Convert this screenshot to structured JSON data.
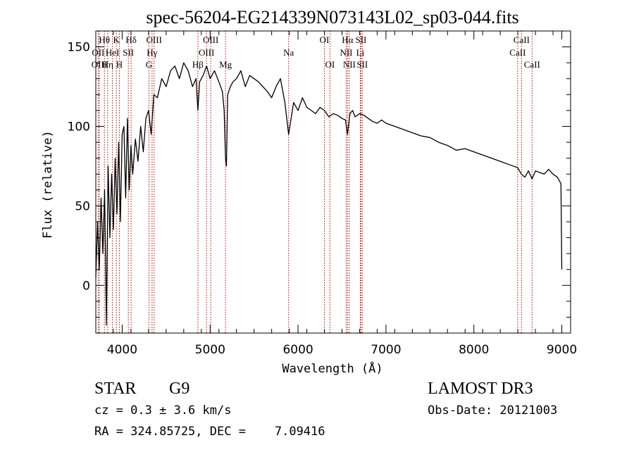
{
  "chart_data": {
    "type": "line",
    "title": "spec-56204-EG214339N073143L02_sp03-044.fits",
    "xlabel": "Wavelength (Å)",
    "ylabel": "Flux (relative)",
    "xlim": [
      3700,
      9100
    ],
    "ylim": [
      -30,
      160
    ],
    "xticks": [
      4000,
      5000,
      6000,
      7000,
      8000,
      9000
    ],
    "yticks": [
      0,
      50,
      100,
      150
    ],
    "series": [
      {
        "name": "spectrum",
        "x": [
          3700,
          3720,
          3740,
          3760,
          3780,
          3800,
          3820,
          3840,
          3860,
          3880,
          3900,
          3920,
          3940,
          3960,
          3980,
          4000,
          4020,
          4040,
          4060,
          4080,
          4100,
          4120,
          4150,
          4180,
          4210,
          4240,
          4270,
          4300,
          4330,
          4360,
          4400,
          4450,
          4500,
          4550,
          4600,
          4650,
          4700,
          4750,
          4800,
          4840,
          4861,
          4880,
          4920,
          4960,
          5000,
          5050,
          5100,
          5140,
          5160,
          5175,
          5185,
          5200,
          5230,
          5260,
          5300,
          5350,
          5400,
          5450,
          5500,
          5550,
          5600,
          5650,
          5700,
          5750,
          5800,
          5850,
          5893,
          5950,
          6000,
          6050,
          6100,
          6150,
          6200,
          6250,
          6300,
          6350,
          6400,
          6450,
          6500,
          6540,
          6563,
          6590,
          6620,
          6650,
          6700,
          6750,
          6800,
          6850,
          6900,
          6950,
          7000,
          7100,
          7200,
          7300,
          7400,
          7500,
          7600,
          7700,
          7800,
          7900,
          8000,
          8100,
          8200,
          8300,
          8400,
          8498,
          8540,
          8580,
          8620,
          8662,
          8700,
          8750,
          8800,
          8850,
          8900,
          8950,
          8990,
          9000
        ],
        "y": [
          5,
          40,
          10,
          55,
          20,
          60,
          -25,
          75,
          30,
          70,
          35,
          80,
          45,
          90,
          40,
          95,
          100,
          55,
          105,
          60,
          88,
          70,
          92,
          78,
          100,
          84,
          105,
          110,
          95,
          120,
          118,
          130,
          125,
          135,
          138,
          130,
          140,
          135,
          125,
          130,
          110,
          128,
          132,
          138,
          130,
          135,
          128,
          122,
          110,
          80,
          75,
          120,
          125,
          128,
          130,
          135,
          125,
          132,
          130,
          128,
          125,
          122,
          118,
          125,
          130,
          115,
          95,
          115,
          110,
          118,
          112,
          110,
          108,
          112,
          110,
          106,
          108,
          107,
          105,
          104,
          95,
          108,
          110,
          106,
          108,
          107,
          105,
          103,
          102,
          104,
          102,
          100,
          98,
          96,
          94,
          93,
          90,
          88,
          85,
          86,
          84,
          82,
          80,
          78,
          76,
          74,
          70,
          68,
          72,
          67,
          72,
          71,
          70,
          73,
          70,
          68,
          64,
          10
        ]
      }
    ],
    "lines": [
      {
        "name": "Hθ",
        "wavelength": 3798,
        "row": 0
      },
      {
        "name": "OII",
        "wavelength": 3727,
        "row": 1
      },
      {
        "name": "OIII",
        "wavelength": 3740,
        "row": 2
      },
      {
        "name": "K",
        "wavelength": 3934,
        "row": 0
      },
      {
        "name": "HeI",
        "wavelength": 3889,
        "row": 1
      },
      {
        "name": "Hη",
        "wavelength": 3835,
        "row": 2
      },
      {
        "name": "H",
        "wavelength": 3968,
        "row": 2
      },
      {
        "name": "Hδ",
        "wavelength": 4102,
        "row": 0
      },
      {
        "name": "SII",
        "wavelength": 4070,
        "row": 1
      },
      {
        "name": "OIII",
        "wavelength": 4363,
        "row": 0
      },
      {
        "name": "Hγ",
        "wavelength": 4340,
        "row": 1
      },
      {
        "name": "G",
        "wavelength": 4304,
        "row": 2
      },
      {
        "name": "OIII",
        "wavelength": 5007,
        "row": 0
      },
      {
        "name": "OIII",
        "wavelength": 4959,
        "row": 1
      },
      {
        "name": "Hβ",
        "wavelength": 4861,
        "row": 2
      },
      {
        "name": "Mg",
        "wavelength": 5175,
        "row": 2
      },
      {
        "name": "Na",
        "wavelength": 5893,
        "row": 1
      },
      {
        "name": "OI",
        "wavelength": 6300,
        "row": 0
      },
      {
        "name": "OI",
        "wavelength": 6363,
        "row": 2
      },
      {
        "name": "Hα",
        "wavelength": 6563,
        "row": 0
      },
      {
        "name": "NII",
        "wavelength": 6548,
        "row": 1
      },
      {
        "name": "NII",
        "wavelength": 6583,
        "row": 2
      },
      {
        "name": "SII",
        "wavelength": 6716,
        "row": 0
      },
      {
        "name": "Li",
        "wavelength": 6708,
        "row": 1
      },
      {
        "name": "SII",
        "wavelength": 6731,
        "row": 2
      },
      {
        "name": "CaII",
        "wavelength": 8542,
        "row": 0
      },
      {
        "name": "CaII",
        "wavelength": 8498,
        "row": 1
      },
      {
        "name": "CaII",
        "wavelength": 8662,
        "row": 2
      }
    ]
  },
  "footer": {
    "class_label": "STAR",
    "subclass": "G9",
    "survey": "LAMOST DR3",
    "cz": "cz = 0.3 ± 3.6 km/s",
    "obs_date": "Obs-Date: 20121003",
    "coords": "RA = 324.85725, DEC =    7.09416"
  },
  "colors": {
    "axes": "#000000",
    "spectrum": "#000000",
    "line_markers": "#c00000"
  }
}
